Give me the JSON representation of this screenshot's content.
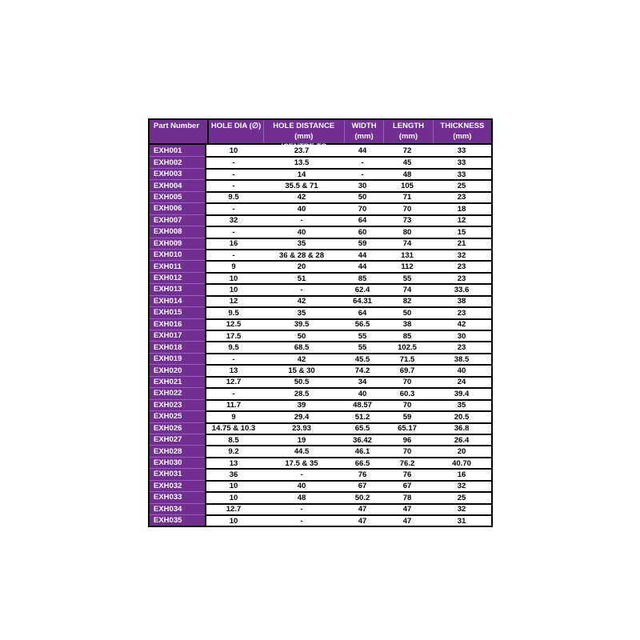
{
  "colors": {
    "purple": "#702f91",
    "purple_divider": "#9a5fc0",
    "border": "#000000",
    "header_text": "#ffffff",
    "body_text": "#000000",
    "page_bg": "#ffffff"
  },
  "chart_data": {
    "type": "table",
    "columns": [
      {
        "line1": "Part Number",
        "line2": ""
      },
      {
        "line1": "HOLE DIA (∅)",
        "line2": ""
      },
      {
        "line1": "HOLE DISTANCE (mm)",
        "line2": "(CENTRE TO CENTRE)"
      },
      {
        "line1": "WIDTH",
        "line2": "(mm)"
      },
      {
        "line1": "LENGTH",
        "line2": "(mm)"
      },
      {
        "line1": "THICKNESS",
        "line2": "(mm)"
      }
    ],
    "rows": [
      [
        "EXH001",
        "10",
        "23.7",
        "44",
        "72",
        "33"
      ],
      [
        "EXH002",
        "-",
        "13.5",
        "-",
        "45",
        "33"
      ],
      [
        "EXH003",
        "-",
        "14",
        "-",
        "48",
        "33"
      ],
      [
        "EXH004",
        "-",
        "35.5 & 71",
        "30",
        "105",
        "25"
      ],
      [
        "EXH005",
        "9.5",
        "42",
        "50",
        "71",
        "23"
      ],
      [
        "EXH006",
        "-",
        "40",
        "70",
        "70",
        "18"
      ],
      [
        "EXH007",
        "32",
        "-",
        "64",
        "73",
        "12"
      ],
      [
        "EXH008",
        "-",
        "40",
        "60",
        "80",
        "15"
      ],
      [
        "EXH009",
        "16",
        "35",
        "59",
        "74",
        "21"
      ],
      [
        "EXH010",
        "-",
        "36 & 28 & 28",
        "44",
        "131",
        "32"
      ],
      [
        "EXH011",
        "9",
        "20",
        "44",
        "112",
        "23"
      ],
      [
        "EXH012",
        "10",
        "51",
        "85",
        "55",
        "23"
      ],
      [
        "EXH013",
        "10",
        "-",
        "62.4",
        "74",
        "33.6"
      ],
      [
        "EXH014",
        "12",
        "42",
        "64.31",
        "82",
        "38"
      ],
      [
        "EXH015",
        "9.5",
        "35",
        "64",
        "50",
        "23"
      ],
      [
        "EXH016",
        "12.5",
        "39.5",
        "56.5",
        "38",
        "42"
      ],
      [
        "EXH017",
        "17.5",
        "50",
        "55",
        "85",
        "30"
      ],
      [
        "EXH018",
        "9.5",
        "68.5",
        "55",
        "102.5",
        "23"
      ],
      [
        "EXH019",
        "-",
        "42",
        "45.5",
        "71.5",
        "38.5"
      ],
      [
        "EXH020",
        "13",
        "15 & 30",
        "74.2",
        "69.7",
        "40"
      ],
      [
        "EXH021",
        "12.7",
        "50.5",
        "34",
        "70",
        "24"
      ],
      [
        "EXH022",
        "-",
        "28.5",
        "40",
        "60.3",
        "39.4"
      ],
      [
        "EXH023",
        "11.7",
        "39",
        "48.57",
        "70",
        "35"
      ],
      [
        "EXH025",
        "9",
        "29.4",
        "51.2",
        "59",
        "20.5"
      ],
      [
        "EXH026",
        "14.75 & 10.3",
        "23.93",
        "65.5",
        "65.17",
        "36.8"
      ],
      [
        "EXH027",
        "8.5",
        "19",
        "36.42",
        "96",
        "26.4"
      ],
      [
        "EXH028",
        "9.2",
        "44.5",
        "46.1",
        "70",
        "20"
      ],
      [
        "EXH030",
        "13",
        "17.5 & 35",
        "66.5",
        "76.2",
        "40.70"
      ],
      [
        "EXH031",
        "36",
        "-",
        "76",
        "76",
        "16"
      ],
      [
        "EXH032",
        "10",
        "40",
        "67",
        "67",
        "32"
      ],
      [
        "EXH033",
        "10",
        "48",
        "50.2",
        "78",
        "25"
      ],
      [
        "EXH034",
        "12.7",
        "-",
        "47",
        "47",
        "32"
      ],
      [
        "EXH035",
        "10",
        "-",
        "47",
        "47",
        "31"
      ]
    ]
  }
}
